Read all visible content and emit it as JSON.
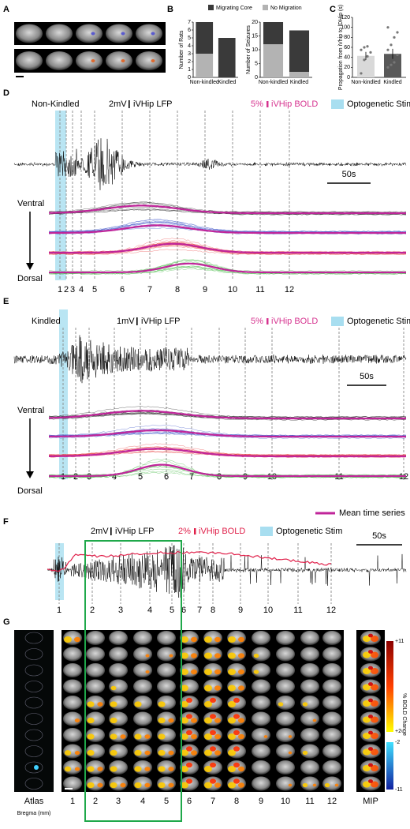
{
  "panels": {
    "A": {
      "letter": "A"
    },
    "B": {
      "letter": "B",
      "legend": [
        "Migrating Core",
        "No Migration"
      ],
      "charts": [
        {
          "type": "bar",
          "ylabel": "Number of Rats",
          "categories": [
            "Non-kindled",
            "Kindled"
          ],
          "ylim": [
            0,
            7
          ],
          "yticks": [
            0,
            1,
            2,
            3,
            4,
            5,
            6,
            7
          ],
          "series": [
            {
              "name": "No Migration",
              "color": "#b3b3b3",
              "values": [
                3,
                0
              ]
            },
            {
              "name": "Migrating Core",
              "color": "#3a3a3a",
              "values": [
                4,
                5
              ]
            }
          ]
        },
        {
          "type": "bar",
          "ylabel": "Number of Seizures",
          "categories": [
            "Non-kindled",
            "Kindled"
          ],
          "ylim": [
            0,
            20
          ],
          "yticks": [
            0,
            5,
            10,
            15,
            20
          ],
          "series": [
            {
              "name": "No Migration",
              "color": "#b3b3b3",
              "values": [
                12,
                2
              ]
            },
            {
              "name": "Migrating Core",
              "color": "#3a3a3a",
              "values": [
                8,
                15
              ]
            }
          ]
        }
      ]
    },
    "C": {
      "letter": "C",
      "type": "bar",
      "ylabel": "Propagation from iVhip to lDHip (s)",
      "categories": [
        "Non-kindled",
        "Kindled"
      ],
      "ylim": [
        0,
        120
      ],
      "yticks": [
        0,
        20,
        40,
        60,
        80,
        100,
        120
      ],
      "values": [
        43,
        47
      ],
      "errors": [
        8,
        10
      ],
      "colors": [
        "#d9d9d9",
        "#595959"
      ],
      "points": [
        [
          8,
          35,
          42,
          50,
          55,
          60,
          62
        ],
        [
          20,
          25,
          30,
          45,
          55,
          65,
          80,
          90,
          100
        ]
      ]
    },
    "D": {
      "letter": "D",
      "title": "Non-Kindled",
      "lfp_scale": "2mV",
      "lfp_label": "iVHip LFP",
      "bold_scale": "5%",
      "bold_label": "iVHip BOLD",
      "stim_label": "Optogenetic Stim",
      "time_scale": "50s",
      "ventral": "Ventral",
      "dorsal": "Dorsal",
      "events": [
        "1",
        "2",
        "3",
        "4",
        "5",
        "6",
        "7",
        "8",
        "9",
        "10",
        "11",
        "12"
      ]
    },
    "E": {
      "letter": "E",
      "title": "Kindled",
      "lfp_scale": "1mV",
      "lfp_label": "iVHip LFP",
      "bold_scale": "5%",
      "bold_label": "iVHip BOLD",
      "stim_label": "Optogenetic Stim",
      "time_scale": "50s",
      "ventral": "Ventral",
      "dorsal": "Dorsal",
      "events": [
        "1",
        "2",
        "3",
        "4",
        "5",
        "6",
        "7",
        "8",
        "9",
        "10",
        "11",
        "12"
      ],
      "mean_label": "Mean time series"
    },
    "F": {
      "letter": "F",
      "lfp_scale": "2mV",
      "lfp_label": "iVHip LFP",
      "bold_scale": "2%",
      "bold_label": "iVHip BOLD",
      "stim_label": "Optogenetic Stim",
      "time_scale": "50s",
      "events": [
        "1",
        "2",
        "3",
        "4",
        "5",
        "6",
        "7",
        "8",
        "9",
        "10",
        "11",
        "12"
      ]
    },
    "G": {
      "letter": "G",
      "atlas": "Atlas",
      "bregma": "Bregma (mm)",
      "columns": [
        "1",
        "2",
        "3",
        "4",
        "5",
        "6",
        "7",
        "8",
        "9",
        "10",
        "11",
        "12"
      ],
      "mip": "MIP",
      "colorbar": {
        "title": "% BOLD Change",
        "labels": [
          "+11",
          "+2",
          "-2",
          "-11"
        ]
      }
    }
  }
}
